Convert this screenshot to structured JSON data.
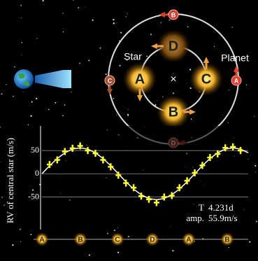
{
  "chart_data": {
    "type": "scatter",
    "y_label": "RV of central star (m/s)",
    "ylim": [
      -120,
      103
    ],
    "yticks": [
      50,
      0,
      -50
    ],
    "grid": true,
    "xlim": [
      0,
      1.35
    ],
    "series": [
      {
        "type": "line",
        "color": "#ffffff",
        "x": [
          0,
          0.05,
          0.1,
          0.15,
          0.2,
          0.25,
          0.3,
          0.35,
          0.4,
          0.45,
          0.5,
          0.55,
          0.6,
          0.65,
          0.7,
          0.75,
          0.8,
          0.85,
          0.9,
          0.95,
          1.0,
          1.05,
          1.1,
          1.15,
          1.2,
          1.25,
          1.3,
          1.35
        ],
        "values": [
          0,
          17.3,
          32.9,
          45.2,
          53.2,
          55.9,
          53.2,
          45.2,
          32.9,
          17.3,
          0,
          -17.3,
          -32.9,
          -45.2,
          -53.2,
          -55.9,
          -53.2,
          -45.2,
          -32.9,
          -17.3,
          0,
          17.3,
          32.9,
          45.2,
          53.2,
          55.9,
          53.2,
          45.2
        ]
      },
      {
        "type": "scatter",
        "color": "#ffff33",
        "x": [
          0.05,
          0.1,
          0.15,
          0.2,
          0.25,
          0.3,
          0.35,
          0.4,
          0.45,
          0.5,
          0.55,
          0.6,
          0.65,
          0.7,
          0.75,
          0.8,
          0.85,
          0.9,
          0.95,
          1.0,
          1.05,
          1.1,
          1.15,
          1.2,
          1.25,
          1.3
        ],
        "values": [
          20,
          30,
          48,
          55,
          60,
          50,
          44,
          30,
          15,
          -3,
          -20,
          -30,
          -48,
          -55,
          -62,
          -50,
          -47,
          -30,
          -15,
          2,
          18,
          35,
          43,
          56,
          58,
          50
        ]
      }
    ],
    "annotations": [
      [
        "T",
        "4.231d"
      ],
      [
        "amp.",
        "55.9m/s"
      ]
    ],
    "phase_sequence": [
      "A",
      "B",
      "C",
      "D",
      "A",
      "B"
    ]
  },
  "diagram": {
    "star_label": "Star",
    "planet_label": "Planet",
    "center_mark": "×",
    "star_positions": [
      "A",
      "B",
      "C",
      "D"
    ],
    "planet_positions": [
      "A",
      "B",
      "C",
      "D"
    ]
  }
}
